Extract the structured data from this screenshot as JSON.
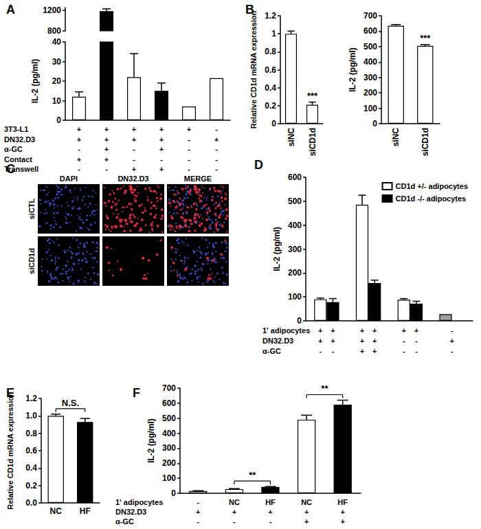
{
  "chart_data": [
    {
      "type": "bar",
      "title": "A",
      "y_label": "IL-2 (pg/ml)",
      "categories": [
        null,
        null,
        null,
        null,
        null,
        null
      ],
      "values": [
        12,
        1180,
        22,
        15,
        7,
        21.5
      ],
      "errors": [
        2.5,
        45,
        12,
        4,
        null,
        null
      ],
      "colors": [
        "#ffffff",
        "#000000",
        "#ffffff",
        "#000000",
        "#ffffff",
        "#ffffff"
      ],
      "ylim": [
        0,
        1250
      ],
      "yticks": [
        0,
        10,
        20,
        30,
        40,
        800,
        1200
      ],
      "axis_break": [
        40,
        800
      ],
      "grid": false,
      "conditions": [
        {
          "label": "3T3-L1",
          "marks": [
            "+",
            "+",
            "+",
            "+",
            "+",
            "-"
          ]
        },
        {
          "label": "DN32.D3",
          "marks": [
            "+",
            "+",
            "+",
            "+",
            "-",
            "+"
          ]
        },
        {
          "label": "α-GC",
          "marks": [
            "-",
            "+",
            "-",
            "+",
            "-",
            "-"
          ]
        },
        {
          "label": "Contact",
          "marks": [
            "+",
            "+",
            "-",
            "-",
            "-",
            "-"
          ]
        },
        {
          "label": "Transwell",
          "marks": [
            "-",
            "-",
            "+",
            "+",
            "-",
            "-"
          ]
        }
      ]
    },
    {
      "type": "bar",
      "title": "B",
      "y_label": "Relative CD1d mRNA expression",
      "categories": [
        "siNC",
        "siCD1d"
      ],
      "values": [
        1.0,
        0.21
      ],
      "errors": [
        0.03,
        0.03
      ],
      "color": "#ffffff",
      "ylim": [
        0,
        1.2
      ],
      "yticks": [
        0,
        0.2,
        0.4,
        0.6,
        0.8,
        1,
        1.2
      ],
      "grid": false,
      "annotations": [
        {
          "text": "***",
          "category": "siCD1d"
        }
      ]
    },
    {
      "type": "bar",
      "y_label": "IL-2 (pg/ml)",
      "categories": [
        "siNC",
        "siCD1d"
      ],
      "values": [
        635,
        505
      ],
      "errors": [
        8,
        8
      ],
      "color": "#ffffff",
      "ylim": [
        0,
        700
      ],
      "yticks": [
        0,
        100,
        200,
        300,
        400,
        500,
        600,
        700
      ],
      "grid": false,
      "annotations": [
        {
          "text": "***",
          "category": "siCD1d"
        }
      ]
    },
    {
      "type": "bar",
      "title": "D",
      "y_label": "IL-2 (pg/ml)",
      "categories": [
        null,
        null,
        null,
        null
      ],
      "series": [
        {
          "name": "CD1d +/- adipocytes",
          "color": "#ffffff",
          "colors": [
            "#ffffff",
            "#ffffff",
            "#ffffff",
            "#a0a0a0"
          ],
          "values": [
            90,
            485,
            88,
            28
          ],
          "errors": [
            5,
            40,
            5,
            null
          ]
        },
        {
          "name": "CD1d -/- adipocytes",
          "color": "#000000",
          "values": [
            78,
            158,
            72,
            null
          ],
          "errors": [
            15,
            12,
            10,
            null
          ]
        }
      ],
      "ylim": [
        0,
        600
      ],
      "yticks": [
        0,
        100,
        200,
        300,
        400,
        500,
        600
      ],
      "grid": false,
      "legend": "upper right",
      "conditions": [
        {
          "label": "1' adipocytes",
          "marks": [
            "+",
            "+",
            "+",
            "+",
            "+",
            "+",
            "-"
          ]
        },
        {
          "label": "DN32.D3",
          "marks": [
            "+",
            "+",
            "+",
            "+",
            "-",
            "-",
            "+"
          ]
        },
        {
          "label": "α-GC",
          "marks": [
            "-",
            "-",
            "+",
            "+",
            "-",
            "-",
            "-"
          ]
        }
      ]
    },
    {
      "type": "bar",
      "title": "E",
      "y_label": "Relative CD1d mRNA expression",
      "categories": [
        "NC",
        "HF"
      ],
      "values": [
        1.0,
        0.93
      ],
      "errors": [
        0.02,
        0.04
      ],
      "colors": [
        "#ffffff",
        "#000000"
      ],
      "ylim": [
        0,
        1.2
      ],
      "yticks": [
        {
          "value": 0,
          "label": "0.0"
        },
        {
          "value": 0.2,
          "label": "0.2"
        },
        {
          "value": 0.4,
          "label": "0.4"
        },
        {
          "value": 0.6,
          "label": "0.6"
        },
        {
          "value": 0.8,
          "label": "0.8"
        },
        {
          "value": 1,
          "label": "1.0"
        },
        {
          "value": 1.2,
          "label": "1.2"
        }
      ],
      "grid": false,
      "annotations": [
        {
          "text": "N.S.",
          "between": [
            "NC",
            "HF"
          ]
        }
      ]
    },
    {
      "type": "bar",
      "title": "F",
      "y_label": "IL-2 (pg/ml)",
      "categories": [
        null,
        null,
        null,
        null,
        null
      ],
      "values": [
        15,
        28,
        42,
        490,
        590
      ],
      "errors": [
        2,
        3,
        3,
        30,
        30
      ],
      "colors": [
        "#ffffff",
        "#ffffff",
        "#000000",
        "#ffffff",
        "#000000"
      ],
      "ylim": [
        0,
        700
      ],
      "yticks": [
        0,
        100,
        200,
        300,
        400,
        500,
        600,
        700
      ],
      "grid": false,
      "conditions": [
        {
          "label": "1' adipocytes",
          "marks": [
            "-",
            "NC",
            "HF",
            "NC",
            "HF"
          ]
        },
        {
          "label": "DN32.D3",
          "marks": [
            "+",
            "+",
            "+",
            "+",
            "+"
          ]
        },
        {
          "label": "α-GC",
          "marks": [
            "-",
            "-",
            "-",
            "+",
            "+"
          ]
        }
      ],
      "annotations": [
        {
          "text": "**",
          "between": [
            1,
            2
          ]
        },
        {
          "text": "**",
          "between": [
            3,
            4
          ]
        }
      ]
    }
  ],
  "image_panel": {
    "title": "C",
    "columns": [
      "DAPI",
      "DN32.D3",
      "MERGE"
    ],
    "rows": [
      "siCTL",
      "siCD1d"
    ]
  }
}
